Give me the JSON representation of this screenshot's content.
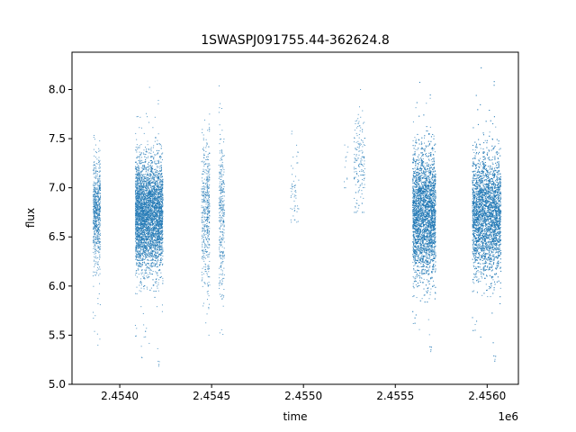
{
  "chart_data": {
    "type": "scatter",
    "title": "1SWASPJ091755.44-362624.8",
    "xlabel": "time",
    "ylabel": "flux",
    "x_offset_label": "1e6",
    "xlim": [
      2453740,
      2456170
    ],
    "ylim": [
      5.0,
      8.38
    ],
    "x_ticks": [
      2454000,
      2454500,
      2455000,
      2455500,
      2456000
    ],
    "x_tick_labels": [
      "2.4540",
      "2.4545",
      "2.4550",
      "2.4555",
      "2.4560"
    ],
    "y_ticks": [
      5.0,
      5.5,
      6.0,
      6.5,
      7.0,
      7.5,
      8.0
    ],
    "y_tick_labels": [
      "5.0",
      "5.5",
      "6.0",
      "6.5",
      "7.0",
      "7.5",
      "8.0"
    ],
    "grid": false,
    "marker_color": "#1f77b4",
    "observing_seasons": [
      {
        "x_start": 2453855,
        "x_end": 2453895,
        "flux_center": 6.75,
        "flux_spread": 0.25,
        "flux_min": 5.3,
        "flux_max": 7.55,
        "points": 700
      },
      {
        "x_start": 2454085,
        "x_end": 2454130,
        "flux_center": 6.72,
        "flux_spread": 0.28,
        "flux_min": 5.2,
        "flux_max": 7.75,
        "points": 1500
      },
      {
        "x_start": 2454130,
        "x_end": 2454235,
        "flux_center": 6.72,
        "flux_spread": 0.28,
        "flux_min": 5.15,
        "flux_max": 8.05,
        "points": 3300
      },
      {
        "x_start": 2454445,
        "x_end": 2454475,
        "flux_center": 6.75,
        "flux_spread": 0.35,
        "flux_min": 5.6,
        "flux_max": 7.75,
        "points": 260
      },
      {
        "x_start": 2454475,
        "x_end": 2454490,
        "flux_center": 6.75,
        "flux_spread": 0.4,
        "flux_min": 5.5,
        "flux_max": 7.75,
        "points": 220
      },
      {
        "x_start": 2454540,
        "x_end": 2454570,
        "flux_center": 6.7,
        "flux_spread": 0.45,
        "flux_min": 5.25,
        "flux_max": 8.05,
        "points": 320
      },
      {
        "x_start": 2454930,
        "x_end": 2454975,
        "flux_center": 7.0,
        "flux_spread": 0.25,
        "flux_min": 6.65,
        "flux_max": 7.65,
        "points": 55
      },
      {
        "x_start": 2455220,
        "x_end": 2455245,
        "flux_center": 7.3,
        "flux_spread": 0.2,
        "flux_min": 7.0,
        "flux_max": 7.8,
        "points": 12
      },
      {
        "x_start": 2455275,
        "x_end": 2455335,
        "flux_center": 7.25,
        "flux_spread": 0.25,
        "flux_min": 6.75,
        "flux_max": 8.0,
        "points": 170
      },
      {
        "x_start": 2455595,
        "x_end": 2455720,
        "flux_center": 6.72,
        "flux_spread": 0.32,
        "flux_min": 5.3,
        "flux_max": 8.1,
        "points": 4200
      },
      {
        "x_start": 2455920,
        "x_end": 2456075,
        "flux_center": 6.72,
        "flux_spread": 0.3,
        "flux_min": 5.2,
        "flux_max": 8.25,
        "points": 4600
      }
    ]
  }
}
